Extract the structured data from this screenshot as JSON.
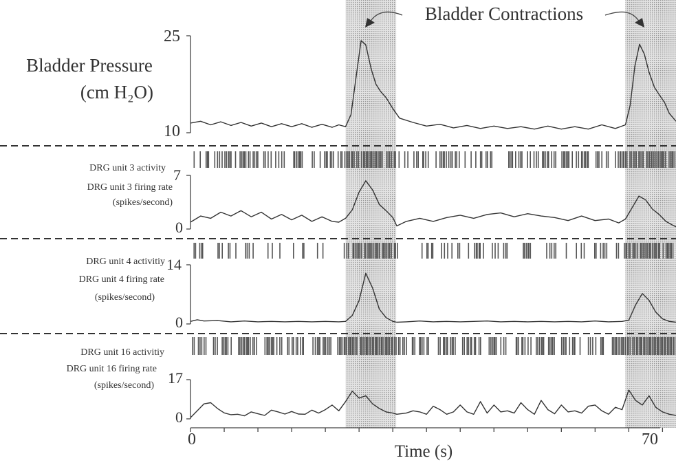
{
  "chart_data": {
    "type": "line",
    "contraction_label": "Bladder Contractions",
    "xlabel": "Time (s)",
    "x_ticks": [
      "0",
      "70"
    ],
    "xlim": [
      0,
      72
    ],
    "shaded_intervals": [
      [
        23,
        30.5
      ],
      [
        64.5,
        72
      ]
    ],
    "colors": {
      "trace": "#333333",
      "shade": "#c8c8c8"
    },
    "panels": [
      {
        "name": "bladder_pressure",
        "ylabel_lines": [
          "Bladder Pressure",
          "(cm H₂O)"
        ],
        "y_ticks": [
          "25",
          "10"
        ],
        "ylim": [
          9,
          25
        ],
        "x": [
          0,
          1.5,
          3,
          4.5,
          6,
          7.5,
          9,
          10.5,
          12,
          13.5,
          15,
          16.5,
          18,
          19.5,
          21,
          22,
          23,
          23.8,
          24.6,
          25.3,
          26,
          26.8,
          27.5,
          28.2,
          29,
          30,
          31,
          33,
          35,
          37,
          39,
          41,
          43,
          45,
          47,
          49,
          51,
          53,
          55,
          57,
          59,
          61,
          63,
          64.5,
          65.2,
          65.9,
          66.6,
          67.3,
          68,
          68.8,
          69.5,
          70.3,
          71,
          72
        ],
        "y": [
          10.6,
          10.9,
          10.3,
          10.8,
          10.2,
          10.7,
          10.1,
          10.6,
          10.0,
          10.5,
          10.0,
          10.5,
          9.9,
          10.4,
          9.9,
          10.3,
          10.0,
          12.0,
          18.5,
          24.2,
          23.5,
          19.5,
          17.0,
          15.8,
          14.8,
          13.0,
          11.4,
          10.7,
          10.1,
          10.4,
          9.8,
          10.2,
          9.7,
          10.1,
          9.7,
          10.0,
          9.6,
          10.1,
          9.6,
          10.0,
          9.6,
          10.3,
          9.7,
          10.3,
          13.5,
          20.0,
          23.6,
          22.0,
          19.0,
          16.5,
          15.3,
          14.0,
          12.2,
          10.9
        ]
      },
      {
        "name": "unit3",
        "activity_label": "DRG unit 3 activity",
        "ylabel_lines": [
          "DRG unit 3 firing rate",
          "(spikes/second)"
        ],
        "y_ticks": [
          "7",
          "0"
        ],
        "ylim": [
          0,
          7
        ],
        "x": [
          0,
          1.5,
          3,
          4.5,
          6,
          7.5,
          9,
          10.5,
          12,
          13.5,
          15,
          16.5,
          18,
          19.5,
          21,
          22,
          23,
          24,
          25,
          26,
          27,
          28,
          29,
          30,
          30.6,
          32,
          34,
          36,
          38,
          40,
          42,
          44,
          46,
          48,
          50,
          52,
          54,
          56,
          58,
          60,
          62,
          63.5,
          64.5,
          65.5,
          66.5,
          67.5,
          68.5,
          69.5,
          70.5,
          71.5,
          72
        ],
        "y": [
          0.9,
          1.7,
          1.4,
          2.2,
          1.7,
          2.4,
          1.6,
          2.2,
          1.3,
          1.9,
          1.2,
          1.8,
          1.0,
          1.6,
          1.0,
          0.9,
          1.4,
          2.5,
          4.8,
          6.3,
          5.1,
          3.2,
          2.4,
          1.5,
          0.4,
          1.0,
          1.4,
          1.0,
          1.5,
          1.8,
          1.4,
          1.9,
          2.1,
          1.6,
          2.0,
          1.7,
          1.5,
          1.1,
          1.7,
          1.1,
          1.3,
          0.8,
          1.3,
          2.8,
          4.3,
          3.8,
          2.6,
          1.9,
          1.0,
          0.5,
          0.3
        ],
        "spike_density": [
          0.55,
          0.9
        ]
      },
      {
        "name": "unit4",
        "activity_label": "DRG unit 4 activitiy",
        "ylabel_lines": [
          "DRG unit 4 firing rate",
          "(spikes/second)"
        ],
        "y_ticks": [
          "14",
          "0"
        ],
        "ylim": [
          0,
          14
        ],
        "x": [
          0,
          1,
          2,
          4,
          6,
          8,
          10,
          12,
          14,
          16,
          18,
          20,
          22,
          23,
          24,
          25,
          26,
          27,
          28,
          29,
          30,
          30.6,
          32,
          34,
          36,
          38,
          40,
          42,
          44,
          46,
          48,
          50,
          52,
          54,
          56,
          58,
          60,
          62,
          64,
          65,
          66,
          67,
          68,
          69,
          70,
          71,
          72
        ],
        "y": [
          0.6,
          1.0,
          0.7,
          0.8,
          0.5,
          0.7,
          0.5,
          0.6,
          0.5,
          0.6,
          0.5,
          0.6,
          0.5,
          0.6,
          2.0,
          5.5,
          12.0,
          8.5,
          3.5,
          1.5,
          0.6,
          0.4,
          0.5,
          0.7,
          0.5,
          0.6,
          0.5,
          0.6,
          0.7,
          0.5,
          0.6,
          0.5,
          0.6,
          0.5,
          0.6,
          0.5,
          0.7,
          0.5,
          0.6,
          0.9,
          4.5,
          7.2,
          5.6,
          2.8,
          1.2,
          0.6,
          0.4
        ],
        "spike_density": [
          0.35,
          0.9
        ]
      },
      {
        "name": "unit16",
        "activity_label": "DRG unit 16 activitiy",
        "ylabel_lines": [
          "DRG unit 16 firing rate",
          "(spikes/second)"
        ],
        "y_ticks": [
          "17",
          "0"
        ],
        "ylim": [
          0,
          17
        ],
        "x": [
          0,
          1,
          2,
          3,
          4,
          5,
          6,
          7,
          8,
          9,
          10,
          11,
          12,
          13,
          14,
          15,
          16,
          17,
          18,
          19,
          20,
          21,
          22,
          23,
          24,
          25,
          26,
          27,
          28,
          29,
          30,
          30.6,
          32,
          33,
          34,
          35,
          36,
          37,
          38,
          39,
          40,
          41,
          42,
          43,
          44,
          45,
          46,
          47,
          48,
          49,
          50,
          51,
          52,
          53,
          54,
          55,
          56,
          57,
          58,
          59,
          60,
          61,
          62,
          63,
          64,
          65,
          66,
          67,
          68,
          69,
          70,
          71,
          72
        ],
        "y": [
          0.5,
          3.5,
          6.5,
          7.0,
          4.5,
          2.6,
          1.8,
          2.0,
          1.3,
          3.0,
          2.2,
          1.5,
          3.8,
          3.0,
          2.1,
          3.2,
          2.1,
          2.0,
          3.8,
          2.5,
          4.0,
          6.0,
          3.5,
          7.5,
          12.0,
          9.0,
          10.0,
          6.5,
          4.5,
          3.0,
          2.5,
          2.0,
          2.5,
          3.5,
          3.0,
          2.0,
          5.5,
          4.0,
          2.0,
          3.0,
          6.0,
          3.0,
          2.0,
          7.5,
          2.5,
          6.0,
          3.0,
          3.5,
          2.5,
          7.0,
          4.0,
          2.0,
          8.0,
          4.0,
          2.2,
          6.0,
          3.0,
          3.5,
          2.5,
          5.5,
          6.0,
          3.5,
          2.0,
          5.0,
          4.0,
          12.5,
          8.0,
          6.0,
          10.0,
          5.0,
          3.0,
          2.0,
          1.5
        ],
        "spike_density": [
          0.75,
          0.95
        ]
      }
    ]
  }
}
